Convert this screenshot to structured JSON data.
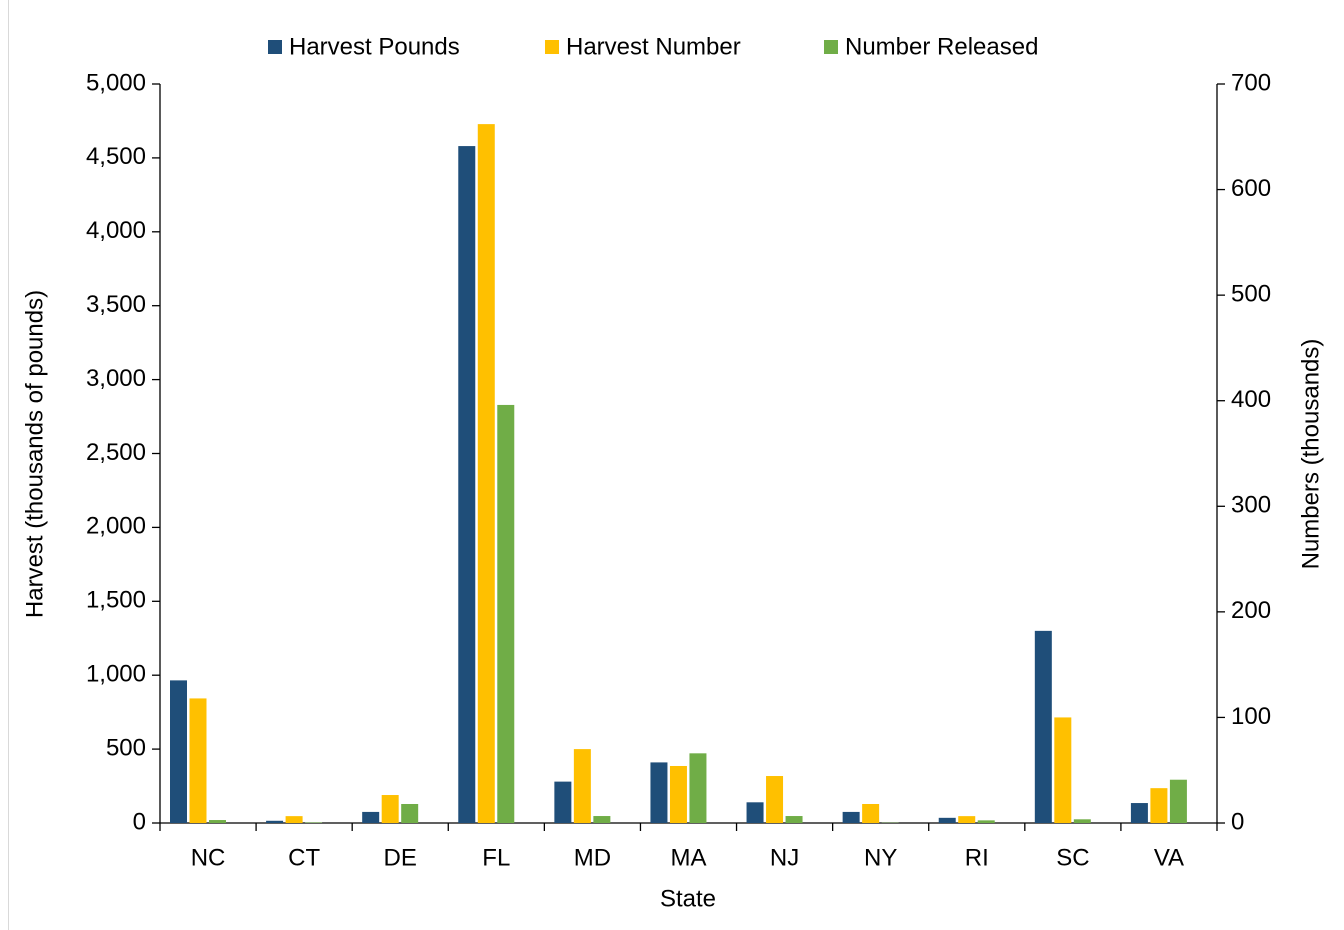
{
  "chart_data": {
    "type": "bar",
    "x_label": "State",
    "y_label": "Harvest (thousands of pounds)",
    "y2_label": "Numbers (thousands)",
    "categories": [
      "NC",
      "CT",
      "DE",
      "FL",
      "MD",
      "MA",
      "NJ",
      "NY",
      "RI",
      "SC",
      "VA"
    ],
    "series": [
      {
        "name": "Harvest Pounds",
        "color": "#1f4e79",
        "values": [
          965,
          15,
          75,
          4580,
          280,
          410,
          140,
          75,
          35,
          1300,
          135
        ]
      },
      {
        "name": "Harvest Number",
        "color": "#ffc000",
        "axis": "y2",
        "values": [
          118,
          6.5,
          26.5,
          662,
          70,
          54,
          44.5,
          18,
          6.5,
          100,
          33
        ]
      },
      {
        "name": "Number Released",
        "color": "#70ad47",
        "axis": "y2",
        "values": [
          2.8,
          0.5,
          18,
          396,
          6.6,
          66,
          6.6,
          0.3,
          2.5,
          3.5,
          41
        ]
      }
    ],
    "ylim": [
      0,
      5000
    ],
    "yticks": [
      0,
      500,
      {
        "value": 1000,
        "label": "1,000"
      },
      {
        "value": 1500,
        "label": "1,500"
      },
      {
        "value": 2000,
        "label": "2,000"
      },
      {
        "value": 2500,
        "label": "2,500"
      },
      {
        "value": 3000,
        "label": "3,000"
      },
      {
        "value": 3500,
        "label": "3,500"
      },
      {
        "value": 4000,
        "label": "4,000"
      },
      {
        "value": 4500,
        "label": "4,500"
      },
      {
        "value": 5000,
        "label": "5,000"
      }
    ],
    "y2lim": [
      0,
      700
    ],
    "y2ticks": [
      0,
      100,
      200,
      300,
      400,
      500,
      600,
      700
    ],
    "legend": "top",
    "grid": false
  }
}
